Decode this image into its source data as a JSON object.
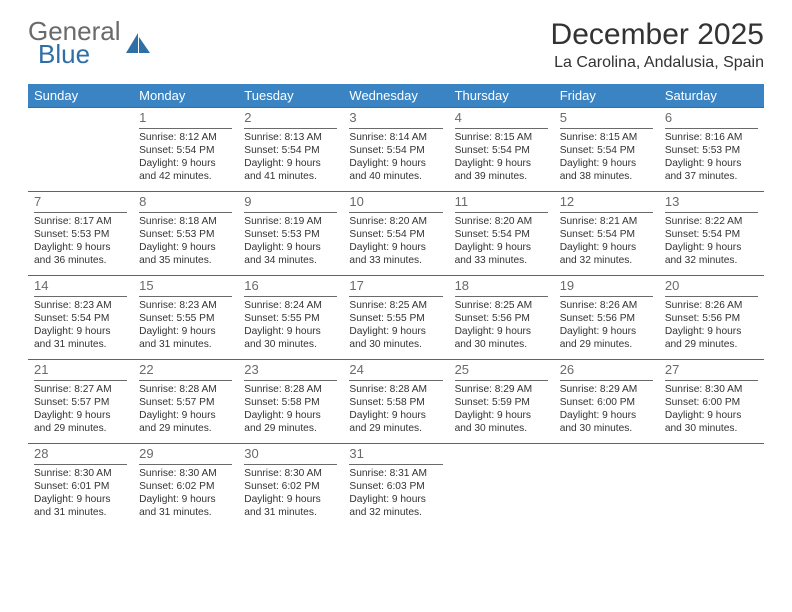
{
  "brand": {
    "word1": "General",
    "word2": "Blue"
  },
  "title": "December 2025",
  "location": "La Carolina, Andalusia, Spain",
  "colors": {
    "header_bg": "#3a84c4",
    "header_text": "#ffffff",
    "rule": "#2f6fa8",
    "daynum": "#6a6a6a",
    "logo_gray": "#6a6a6a",
    "logo_blue": "#2f6fa8"
  },
  "weekdays": [
    "Sunday",
    "Monday",
    "Tuesday",
    "Wednesday",
    "Thursday",
    "Friday",
    "Saturday"
  ],
  "weeks": [
    [
      null,
      {
        "n": "1",
        "sr": "8:12 AM",
        "ss": "5:54 PM",
        "dl": "9 hours and 42 minutes."
      },
      {
        "n": "2",
        "sr": "8:13 AM",
        "ss": "5:54 PM",
        "dl": "9 hours and 41 minutes."
      },
      {
        "n": "3",
        "sr": "8:14 AM",
        "ss": "5:54 PM",
        "dl": "9 hours and 40 minutes."
      },
      {
        "n": "4",
        "sr": "8:15 AM",
        "ss": "5:54 PM",
        "dl": "9 hours and 39 minutes."
      },
      {
        "n": "5",
        "sr": "8:15 AM",
        "ss": "5:54 PM",
        "dl": "9 hours and 38 minutes."
      },
      {
        "n": "6",
        "sr": "8:16 AM",
        "ss": "5:53 PM",
        "dl": "9 hours and 37 minutes."
      }
    ],
    [
      {
        "n": "7",
        "sr": "8:17 AM",
        "ss": "5:53 PM",
        "dl": "9 hours and 36 minutes."
      },
      {
        "n": "8",
        "sr": "8:18 AM",
        "ss": "5:53 PM",
        "dl": "9 hours and 35 minutes."
      },
      {
        "n": "9",
        "sr": "8:19 AM",
        "ss": "5:53 PM",
        "dl": "9 hours and 34 minutes."
      },
      {
        "n": "10",
        "sr": "8:20 AM",
        "ss": "5:54 PM",
        "dl": "9 hours and 33 minutes."
      },
      {
        "n": "11",
        "sr": "8:20 AM",
        "ss": "5:54 PM",
        "dl": "9 hours and 33 minutes."
      },
      {
        "n": "12",
        "sr": "8:21 AM",
        "ss": "5:54 PM",
        "dl": "9 hours and 32 minutes."
      },
      {
        "n": "13",
        "sr": "8:22 AM",
        "ss": "5:54 PM",
        "dl": "9 hours and 32 minutes."
      }
    ],
    [
      {
        "n": "14",
        "sr": "8:23 AM",
        "ss": "5:54 PM",
        "dl": "9 hours and 31 minutes."
      },
      {
        "n": "15",
        "sr": "8:23 AM",
        "ss": "5:55 PM",
        "dl": "9 hours and 31 minutes."
      },
      {
        "n": "16",
        "sr": "8:24 AM",
        "ss": "5:55 PM",
        "dl": "9 hours and 30 minutes."
      },
      {
        "n": "17",
        "sr": "8:25 AM",
        "ss": "5:55 PM",
        "dl": "9 hours and 30 minutes."
      },
      {
        "n": "18",
        "sr": "8:25 AM",
        "ss": "5:56 PM",
        "dl": "9 hours and 30 minutes."
      },
      {
        "n": "19",
        "sr": "8:26 AM",
        "ss": "5:56 PM",
        "dl": "9 hours and 29 minutes."
      },
      {
        "n": "20",
        "sr": "8:26 AM",
        "ss": "5:56 PM",
        "dl": "9 hours and 29 minutes."
      }
    ],
    [
      {
        "n": "21",
        "sr": "8:27 AM",
        "ss": "5:57 PM",
        "dl": "9 hours and 29 minutes."
      },
      {
        "n": "22",
        "sr": "8:28 AM",
        "ss": "5:57 PM",
        "dl": "9 hours and 29 minutes."
      },
      {
        "n": "23",
        "sr": "8:28 AM",
        "ss": "5:58 PM",
        "dl": "9 hours and 29 minutes."
      },
      {
        "n": "24",
        "sr": "8:28 AM",
        "ss": "5:58 PM",
        "dl": "9 hours and 29 minutes."
      },
      {
        "n": "25",
        "sr": "8:29 AM",
        "ss": "5:59 PM",
        "dl": "9 hours and 30 minutes."
      },
      {
        "n": "26",
        "sr": "8:29 AM",
        "ss": "6:00 PM",
        "dl": "9 hours and 30 minutes."
      },
      {
        "n": "27",
        "sr": "8:30 AM",
        "ss": "6:00 PM",
        "dl": "9 hours and 30 minutes."
      }
    ],
    [
      {
        "n": "28",
        "sr": "8:30 AM",
        "ss": "6:01 PM",
        "dl": "9 hours and 31 minutes."
      },
      {
        "n": "29",
        "sr": "8:30 AM",
        "ss": "6:02 PM",
        "dl": "9 hours and 31 minutes."
      },
      {
        "n": "30",
        "sr": "8:30 AM",
        "ss": "6:02 PM",
        "dl": "9 hours and 31 minutes."
      },
      {
        "n": "31",
        "sr": "8:31 AM",
        "ss": "6:03 PM",
        "dl": "9 hours and 32 minutes."
      },
      null,
      null,
      null
    ]
  ],
  "labels": {
    "sunrise": "Sunrise:",
    "sunset": "Sunset:",
    "daylight": "Daylight:"
  }
}
